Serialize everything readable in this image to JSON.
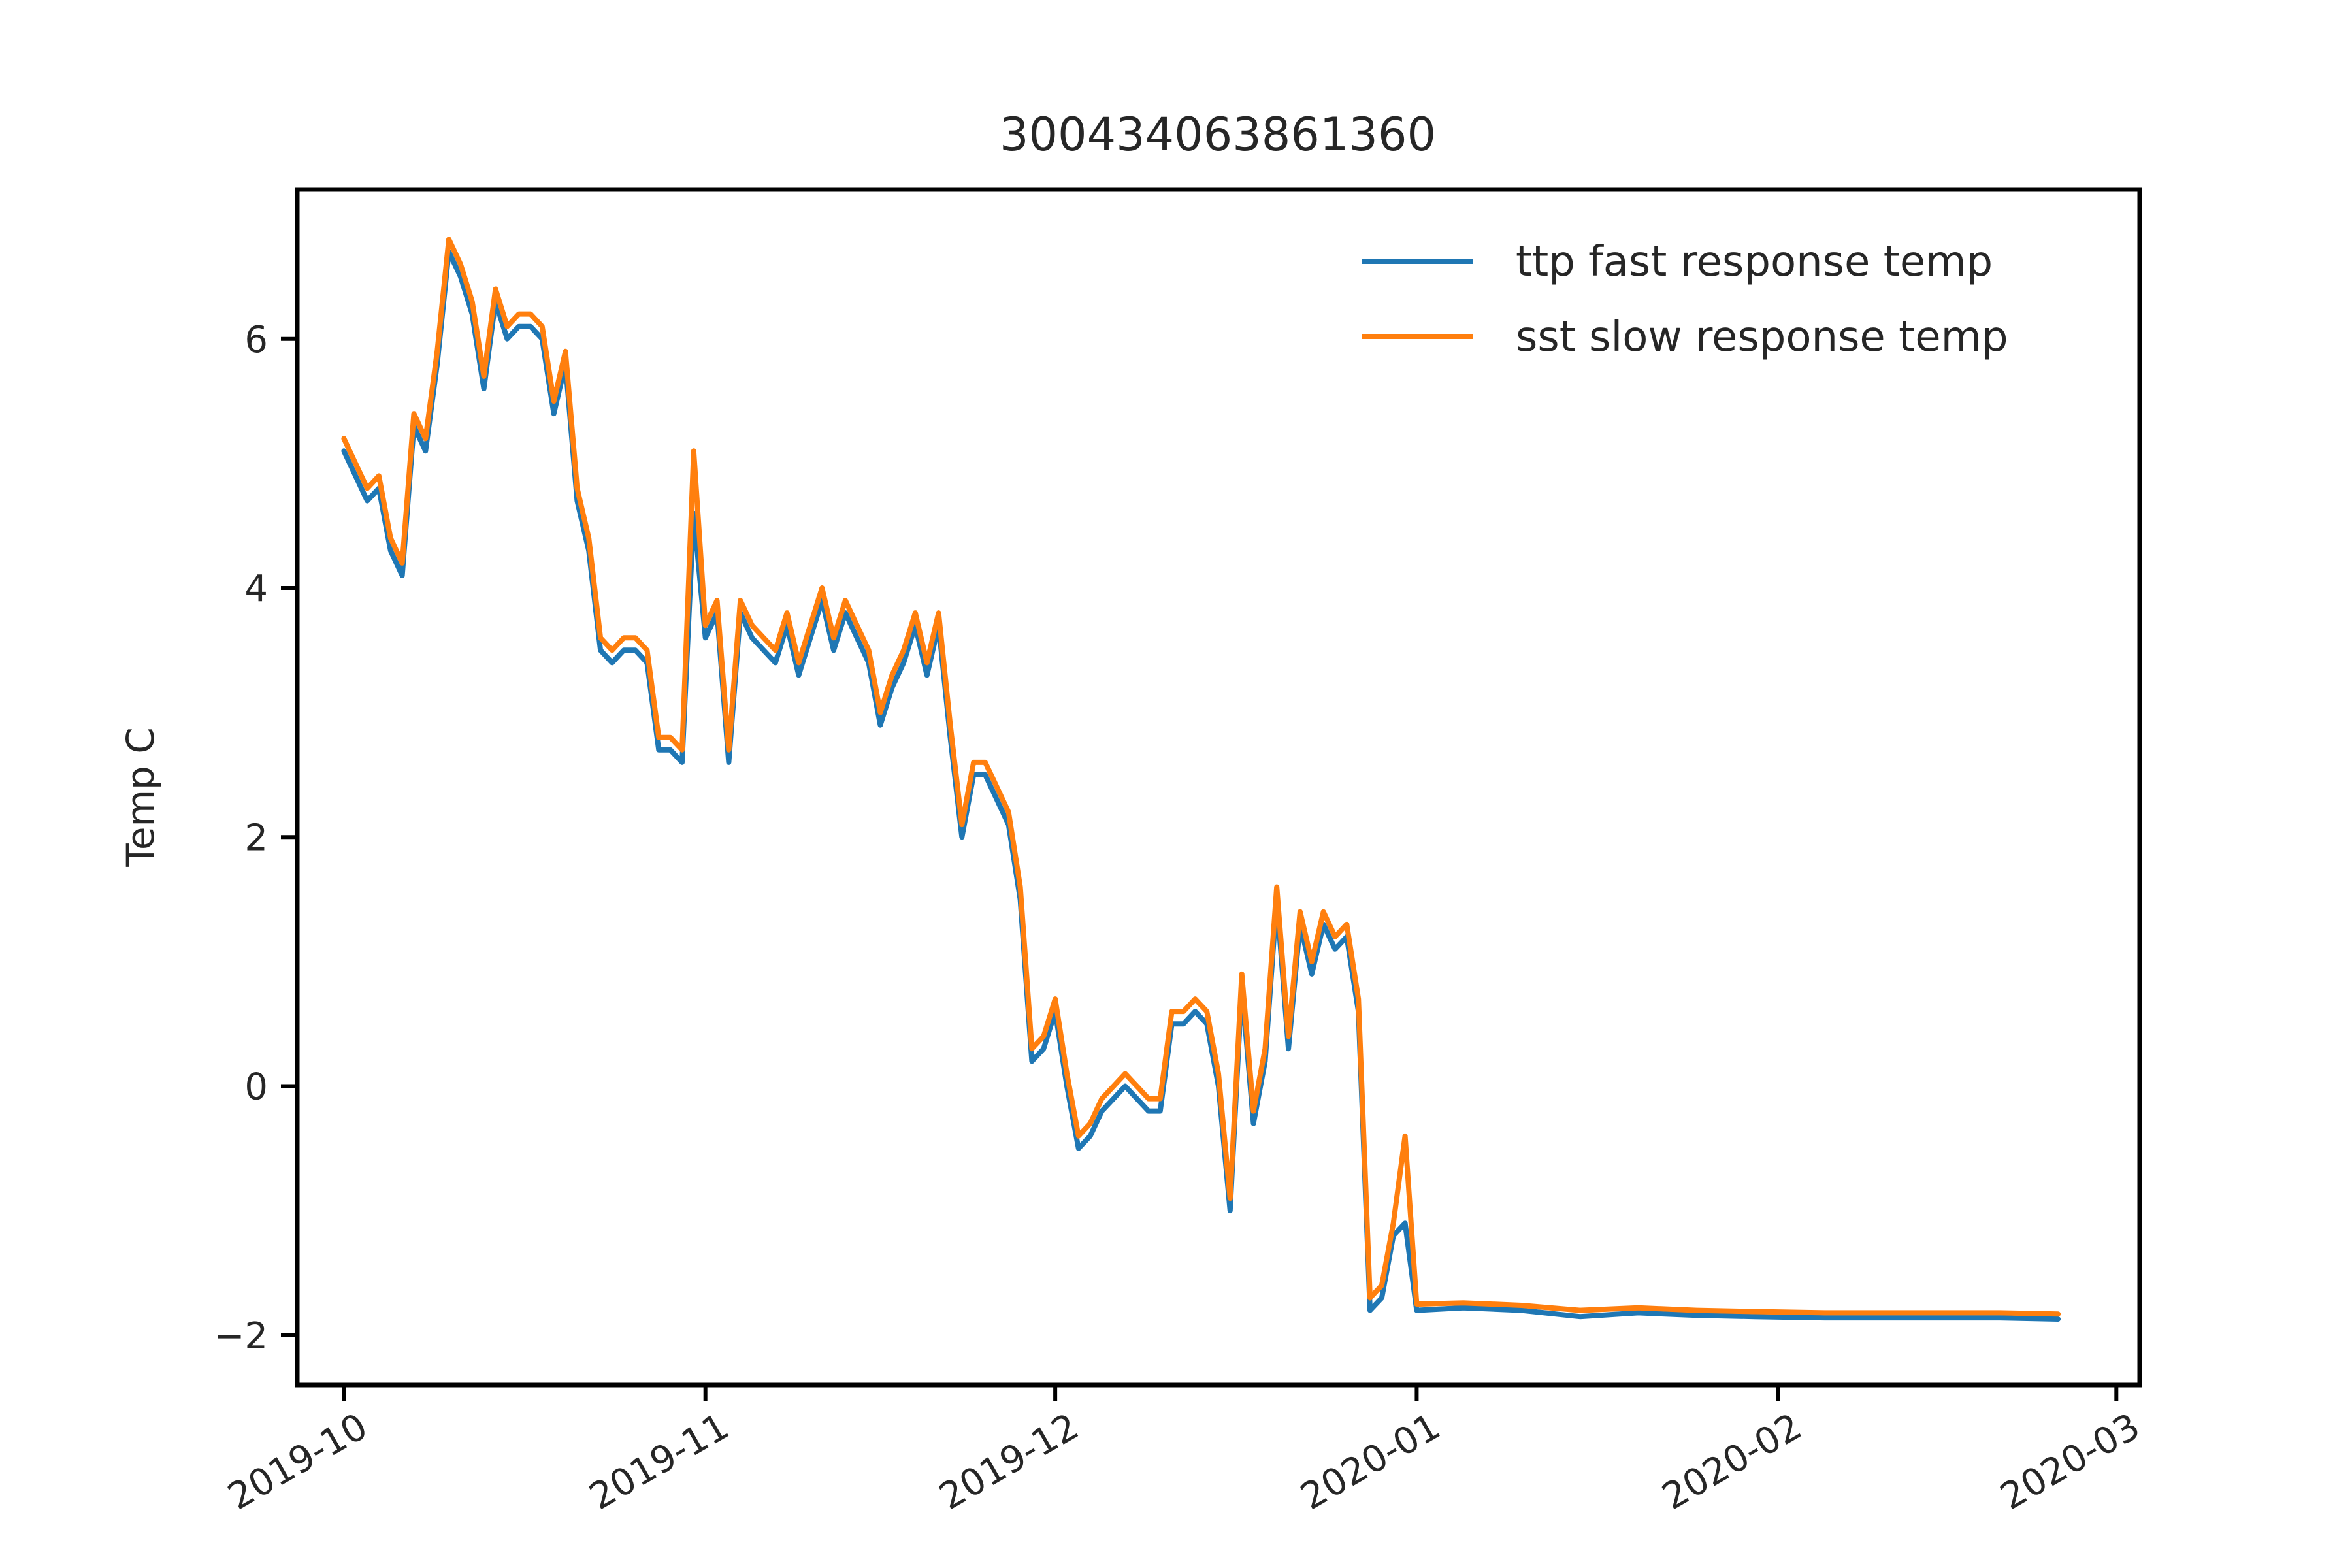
{
  "chart_data": {
    "type": "line",
    "title": "300434063861360",
    "xlabel": "",
    "ylabel": "Temp C",
    "x_axis_type": "date",
    "xlim": [
      "2019-09-27",
      "2020-03-03"
    ],
    "ylim": [
      -2.4,
      7.2
    ],
    "xticks": [
      "2019-10",
      "2019-11",
      "2019-12",
      "2020-01",
      "2020-02",
      "2020-03"
    ],
    "yticks": [
      -2,
      0,
      2,
      4,
      6
    ],
    "grid": false,
    "legend_position": "top-right",
    "colors": {
      "ttp": "#1f77b4",
      "sst": "#ff7f0e"
    },
    "x": [
      "2019-10-01",
      "2019-10-02",
      "2019-10-03",
      "2019-10-04",
      "2019-10-05",
      "2019-10-06",
      "2019-10-07",
      "2019-10-08",
      "2019-10-09",
      "2019-10-10",
      "2019-10-11",
      "2019-10-12",
      "2019-10-13",
      "2019-10-14",
      "2019-10-15",
      "2019-10-16",
      "2019-10-17",
      "2019-10-18",
      "2019-10-19",
      "2019-10-20",
      "2019-10-21",
      "2019-10-22",
      "2019-10-23",
      "2019-10-24",
      "2019-10-25",
      "2019-10-26",
      "2019-10-27",
      "2019-10-28",
      "2019-10-29",
      "2019-10-30",
      "2019-10-31",
      "2019-11-01",
      "2019-11-02",
      "2019-11-03",
      "2019-11-04",
      "2019-11-05",
      "2019-11-06",
      "2019-11-07",
      "2019-11-08",
      "2019-11-09",
      "2019-11-10",
      "2019-11-11",
      "2019-11-12",
      "2019-11-13",
      "2019-11-14",
      "2019-11-15",
      "2019-11-16",
      "2019-11-17",
      "2019-11-18",
      "2019-11-19",
      "2019-11-20",
      "2019-11-21",
      "2019-11-22",
      "2019-11-23",
      "2019-11-24",
      "2019-11-25",
      "2019-11-26",
      "2019-11-27",
      "2019-11-28",
      "2019-11-29",
      "2019-11-30",
      "2019-12-01",
      "2019-12-02",
      "2019-12-03",
      "2019-12-04",
      "2019-12-05",
      "2019-12-06",
      "2019-12-07",
      "2019-12-08",
      "2019-12-09",
      "2019-12-10",
      "2019-12-11",
      "2019-12-12",
      "2019-12-13",
      "2019-12-14",
      "2019-12-15",
      "2019-12-16",
      "2019-12-17",
      "2019-12-18",
      "2019-12-19",
      "2019-12-20",
      "2019-12-21",
      "2019-12-22",
      "2019-12-23",
      "2019-12-24",
      "2019-12-25",
      "2019-12-26",
      "2019-12-27",
      "2019-12-28",
      "2019-12-29",
      "2019-12-30",
      "2019-12-31",
      "2020-01-01",
      "2020-01-05",
      "2020-01-10",
      "2020-01-15",
      "2020-01-20",
      "2020-01-25",
      "2020-01-30",
      "2020-02-05",
      "2020-02-10",
      "2020-02-15",
      "2020-02-20",
      "2020-02-25"
    ],
    "series": [
      {
        "name": "ttp fast response temp",
        "values": [
          5.1,
          4.9,
          4.7,
          4.8,
          4.3,
          4.1,
          5.3,
          5.1,
          5.8,
          6.7,
          6.5,
          6.2,
          5.6,
          6.3,
          6.0,
          6.1,
          6.1,
          6.0,
          5.4,
          5.8,
          4.7,
          4.3,
          3.5,
          3.4,
          3.5,
          3.5,
          3.4,
          2.7,
          2.7,
          2.6,
          4.6,
          3.6,
          3.8,
          2.6,
          3.8,
          3.6,
          3.5,
          3.4,
          3.7,
          3.3,
          3.6,
          3.9,
          3.5,
          3.8,
          3.6,
          3.4,
          2.9,
          3.2,
          3.4,
          3.7,
          3.3,
          3.7,
          2.8,
          2.0,
          2.5,
          2.5,
          2.3,
          2.1,
          1.5,
          0.2,
          0.3,
          0.6,
          0.0,
          -0.5,
          -0.4,
          -0.2,
          -0.1,
          0.0,
          -0.1,
          -0.2,
          -0.2,
          0.5,
          0.5,
          0.6,
          0.5,
          0.0,
          -1.0,
          0.8,
          -0.3,
          0.2,
          1.5,
          0.3,
          1.3,
          0.9,
          1.3,
          1.1,
          1.2,
          0.6,
          -1.8,
          -1.7,
          -1.2,
          -1.1,
          -1.8,
          -1.78,
          -1.8,
          -1.85,
          -1.82,
          -1.84,
          -1.85,
          -1.86,
          -1.86,
          -1.86,
          -1.86,
          -1.87
        ]
      },
      {
        "name": "sst slow response temp",
        "values": [
          5.2,
          5.0,
          4.8,
          4.9,
          4.4,
          4.2,
          5.4,
          5.2,
          5.9,
          6.8,
          6.6,
          6.3,
          5.7,
          6.4,
          6.1,
          6.2,
          6.2,
          6.1,
          5.5,
          5.9,
          4.8,
          4.4,
          3.6,
          3.5,
          3.6,
          3.6,
          3.5,
          2.8,
          2.8,
          2.7,
          5.1,
          3.7,
          3.9,
          2.7,
          3.9,
          3.7,
          3.6,
          3.5,
          3.8,
          3.4,
          3.7,
          4.0,
          3.6,
          3.9,
          3.7,
          3.5,
          3.0,
          3.3,
          3.5,
          3.8,
          3.4,
          3.8,
          2.9,
          2.1,
          2.6,
          2.6,
          2.4,
          2.2,
          1.6,
          0.3,
          0.4,
          0.7,
          0.1,
          -0.4,
          -0.3,
          -0.1,
          0.0,
          0.1,
          0.0,
          -0.1,
          -0.1,
          0.6,
          0.6,
          0.7,
          0.6,
          0.1,
          -0.9,
          0.9,
          -0.2,
          0.3,
          1.6,
          0.4,
          1.4,
          1.0,
          1.4,
          1.2,
          1.3,
          0.7,
          -1.7,
          -1.6,
          -1.1,
          -0.4,
          -1.75,
          -1.74,
          -1.76,
          -1.8,
          -1.78,
          -1.8,
          -1.81,
          -1.82,
          -1.82,
          -1.82,
          -1.82,
          -1.83
        ]
      }
    ]
  }
}
